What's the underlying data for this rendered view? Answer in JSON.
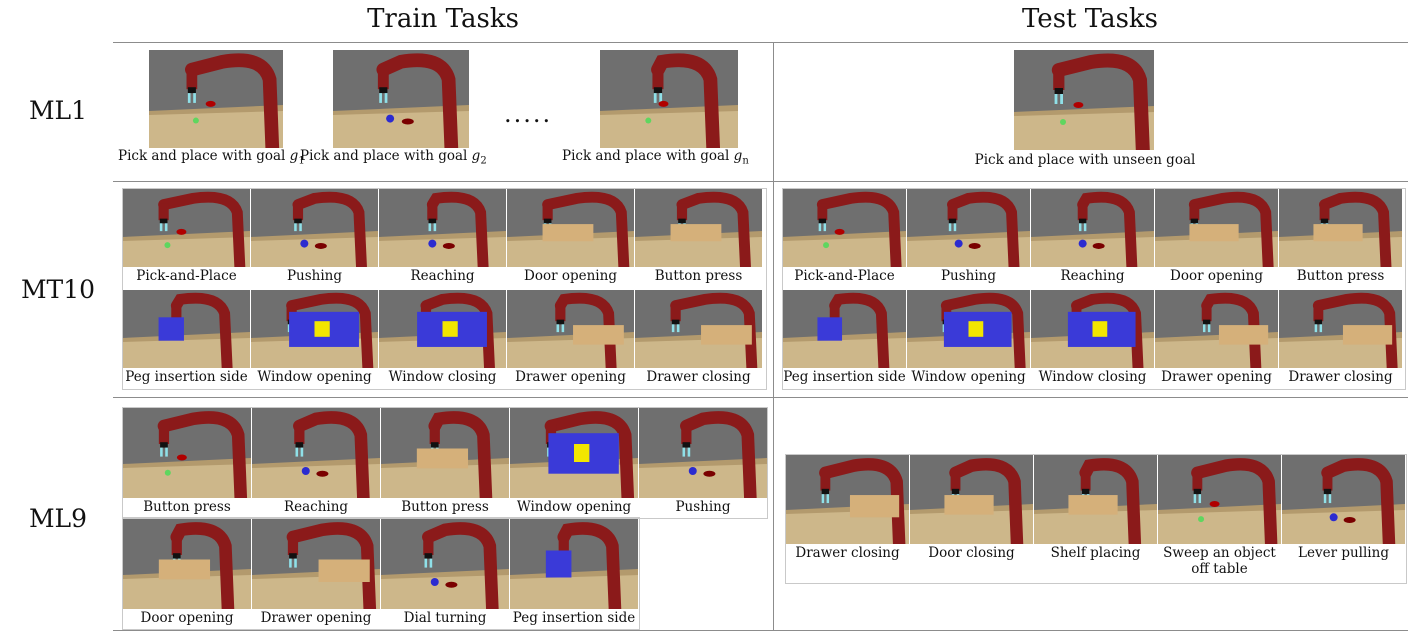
{
  "headers": {
    "train": "Train Tasks",
    "test": "Test Tasks"
  },
  "rows": {
    "ml1": {
      "label": "ML1",
      "train": [
        {
          "text": "Pick and place with goal ",
          "math": "g",
          "sub": "1"
        },
        {
          "text": "Pick and place with goal ",
          "math": "g",
          "sub": "2"
        },
        {
          "text": "Pick and place with goal ",
          "math": "g",
          "sub": "n"
        }
      ],
      "ellipsis": ".....",
      "test": "Pick and place with unseen goal"
    },
    "mt10": {
      "label": "MT10",
      "tasks": [
        "Pick-and-Place",
        "Pushing",
        "Reaching",
        "Door opening",
        "Button press",
        "Peg insertion side",
        "Window opening",
        "Window closing",
        "Drawer opening",
        "Drawer closing"
      ]
    },
    "ml9": {
      "label": "ML9",
      "train": [
        "Button press",
        "Reaching",
        "Button press",
        "Window opening",
        "Pushing",
        "Door opening",
        "Drawer opening",
        "Dial turning",
        "Peg insertion side"
      ],
      "test": [
        "Drawer closing",
        "Door closing",
        "Shelf placing",
        "Sweep an object off table",
        "Lever pulling"
      ]
    }
  },
  "colors": {
    "robot": "#8b1a1a",
    "table": "#cdb78a",
    "backdrop": "#6f6f6f",
    "blue": "#3a3ad8",
    "wood": "#d5b07a"
  }
}
